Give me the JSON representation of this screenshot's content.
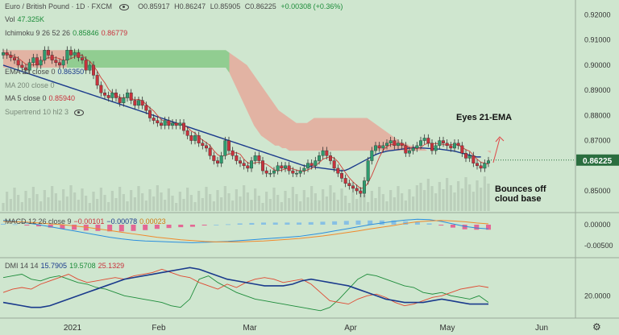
{
  "header": {
    "symbol_title": "Euro / British Pound · 1D · FXCM",
    "ohlc": {
      "o": "O0.85917",
      "h": "H0.86247",
      "l": "L0.85905",
      "c": "C0.86225",
      "chg": "+0.00308 (+0.36%)"
    },
    "vol_label": "Vol",
    "vol_value": "47.325K",
    "ichimoku_label": "Ichimoku 9 26 52 26",
    "ichimoku_v1": "0.85846",
    "ichimoku_v2": "0.86779",
    "ema_label": "EMA 21 close 0",
    "ema_value": "0.86350",
    "ma200_label": "MA 200 close 0",
    "ma5_label": "MA 5 close 0",
    "ma5_value": "0.85940",
    "supertrend_label": "Supertrend 10 hl2 3"
  },
  "colors": {
    "background": "#cfe6cf",
    "up": "#2e9c6e",
    "down": "#c8323c",
    "cloud_bear": "#e8a294",
    "cloud_bull": "#7cc47c",
    "ema": "#1a3a8c",
    "ma5": "#d0403a",
    "last_price_bg": "#2a6e3f",
    "macd": "#2b8fde",
    "signal": "#f08a2c",
    "hist_neg": "#e8508a",
    "hist_pos": "#7ab8e8",
    "dmi_plus": "#1d8c3a",
    "dmi_minus": "#e04830",
    "adx": "#1a3a8c"
  },
  "last_price": "0.86225",
  "macd_legend": {
    "label": "MACD 12 26 close 9",
    "v1": "−0.00101",
    "v2": "−0.00078",
    "v3": "0.00023"
  },
  "dmi_legend": {
    "label": "DMI 14 14",
    "v1": "15.7905",
    "v2": "19.5708",
    "v3": "25.1329"
  },
  "annotations": {
    "eyes": "Eyes 21-EMA",
    "bounce_line1": "Bounces off",
    "bounce_line2": "cloud base"
  },
  "chart_data": [
    {
      "type": "candlestick",
      "title": "Euro / British Pound · 1D · FXCM",
      "ylim": [
        0.842,
        0.924
      ],
      "y_ticks": [
        0.92,
        0.91,
        0.9,
        0.89,
        0.88,
        0.87,
        0.85
      ],
      "x_ticks": [
        "2021",
        "Feb",
        "Mar",
        "Apr",
        "May",
        "Jun"
      ],
      "series": [
        {
          "name": "price",
          "closes": [
            0.905,
            0.904,
            0.903,
            0.902,
            0.9,
            0.899,
            0.898,
            0.901,
            0.903,
            0.9,
            0.902,
            0.906,
            0.904,
            0.902,
            0.901,
            0.9,
            0.902,
            0.906,
            0.904,
            0.905,
            0.903,
            0.902,
            0.898,
            0.9,
            0.896,
            0.892,
            0.889,
            0.888,
            0.887,
            0.889,
            0.887,
            0.885,
            0.887,
            0.889,
            0.886,
            0.884,
            0.886,
            0.884,
            0.882,
            0.879,
            0.878,
            0.877,
            0.876,
            0.878,
            0.876,
            0.877,
            0.876,
            0.877,
            0.874,
            0.872,
            0.87,
            0.872,
            0.869,
            0.868,
            0.867,
            0.864,
            0.862,
            0.861,
            0.864,
            0.87,
            0.866,
            0.864,
            0.862,
            0.861,
            0.86,
            0.859,
            0.862,
            0.864,
            0.862,
            0.858,
            0.857,
            0.857,
            0.858,
            0.86,
            0.859,
            0.86,
            0.858,
            0.857,
            0.857,
            0.858,
            0.859,
            0.861,
            0.86,
            0.862,
            0.864,
            0.866,
            0.864,
            0.862,
            0.859,
            0.857,
            0.855,
            0.853,
            0.852,
            0.851,
            0.85,
            0.849,
            0.854,
            0.862,
            0.866,
            0.868,
            0.867,
            0.868,
            0.869,
            0.87,
            0.868,
            0.869,
            0.868,
            0.865,
            0.866,
            0.867,
            0.868,
            0.87,
            0.871,
            0.869,
            0.866,
            0.868,
            0.87,
            0.869,
            0.868,
            0.867,
            0.869,
            0.868,
            0.865,
            0.863,
            0.864,
            0.861,
            0.86,
            0.859,
            0.861,
            0.862
          ]
        },
        {
          "name": "EMA 21",
          "values": [
            0.9,
            0.8995,
            0.899,
            0.8985,
            0.898,
            0.8975,
            0.897,
            0.8965,
            0.896,
            0.8955,
            0.895,
            0.8945,
            0.894,
            0.8935,
            0.893,
            0.8925,
            0.892,
            0.8915,
            0.891,
            0.8905,
            0.89,
            0.8895,
            0.889,
            0.8885,
            0.888,
            0.8875,
            0.887,
            0.8865,
            0.886,
            0.8855,
            0.885,
            0.8845,
            0.884,
            0.8835,
            0.883,
            0.8825,
            0.882,
            0.8815,
            0.881,
            0.8805,
            0.88,
            0.8795,
            0.879,
            0.8785,
            0.878,
            0.8775,
            0.877,
            0.8765,
            0.876,
            0.8755,
            0.875,
            0.8745,
            0.874,
            0.8735,
            0.873,
            0.8725,
            0.872,
            0.8715,
            0.871,
            0.8705,
            0.87,
            0.8695,
            0.869,
            0.8685,
            0.868,
            0.8675,
            0.867,
            0.8665,
            0.866,
            0.8655,
            0.865,
            0.8645,
            0.864,
            0.8635,
            0.863,
            0.8625,
            0.862,
            0.8615,
            0.861,
            0.8605,
            0.86,
            0.8598,
            0.8596,
            0.8594,
            0.8592,
            0.859,
            0.8588,
            0.8586,
            0.8584,
            0.8582,
            0.858,
            0.8582,
            0.8588,
            0.8596,
            0.8604,
            0.8612,
            0.862,
            0.8628,
            0.8636,
            0.8644,
            0.865,
            0.8654,
            0.8658,
            0.866,
            0.8662,
            0.8664,
            0.8666,
            0.8668,
            0.867,
            0.8672,
            0.8672,
            0.8671,
            0.867,
            0.8669,
            0.8668,
            0.8667,
            0.8666,
            0.8664,
            0.8662,
            0.866,
            0.8658,
            0.8654,
            0.865,
            0.8646,
            0.8642,
            0.8638,
            0.8635,
            0.8635
          ]
        },
        {
          "name": "Ichimoku cloud top",
          "values": [
            0.906,
            0.906,
            0.906,
            0.906,
            0.906,
            0.906,
            0.906,
            0.906,
            0.906,
            0.906,
            0.906,
            0.906,
            0.906,
            0.906,
            0.906,
            0.906,
            0.906,
            0.906,
            0.906,
            0.906,
            0.906,
            0.906,
            0.906,
            0.906,
            0.906,
            0.906,
            0.906,
            0.906,
            0.906,
            0.906,
            0.906,
            0.906,
            0.906,
            0.906,
            0.906,
            0.906,
            0.906,
            0.906,
            0.906,
            0.906,
            0.906,
            0.906,
            0.906,
            0.906,
            0.906,
            0.906,
            0.906,
            0.906,
            0.906,
            0.906,
            0.906,
            0.906,
            0.906,
            0.906,
            0.906,
            0.906,
            0.906,
            0.906,
            0.906,
            0.906,
            0.906,
            0.906,
            0.906,
            0.906,
            0.905,
            0.904,
            0.903,
            0.902,
            0.901,
            0.9,
            0.898,
            0.896,
            0.894,
            0.892,
            0.89,
            0.888,
            0.886,
            0.884,
            0.882,
            0.881,
            0.88,
            0.879,
            0.878,
            0.877,
            0.877,
            0.877,
            0.877,
            0.878,
            0.879,
            0.879,
            0.879,
            0.879,
            0.879,
            0.879,
            0.879,
            0.879,
            0.879,
            0.879,
            0.879,
            0.879,
            0.879,
            0.879,
            0.879,
            0.879,
            0.878,
            0.877,
            0.876,
            0.875,
            0.874,
            0.873,
            0.872,
            0.871,
            0.87,
            0.869,
            0.869,
            0.868,
            0.868,
            0.867,
            0.867,
            0.867,
            0.866,
            0.866,
            0.866,
            0.866,
            0.866,
            0.866,
            0.866,
            0.866,
            0.866,
            0.866,
            0.866,
            0.866,
            0.866,
            0.866,
            0.866,
            0.866,
            0.866,
            0.866,
            0.865,
            0.865,
            0.865,
            0.865,
            0.865,
            0.865,
            0.865,
            0.865,
            0.865,
            0.865,
            0.865,
            0.865,
            0.865,
            0.865,
            0.865,
            0.865,
            0.865,
            0.865,
            0.865,
            0.865,
            0.865,
            0.865,
            0.865,
            0.865,
            0.865
          ]
        },
        {
          "name": "Ichimoku cloud bottom",
          "values": [
            0.899,
            0.899,
            0.899,
            0.899,
            0.899,
            0.899,
            0.899,
            0.899,
            0.899,
            0.899,
            0.899,
            0.899,
            0.899,
            0.899,
            0.899,
            0.899,
            0.899,
            0.899,
            0.899,
            0.899,
            0.899,
            0.899,
            0.899,
            0.899,
            0.899,
            0.899,
            0.899,
            0.899,
            0.899,
            0.899,
            0.899,
            0.899,
            0.899,
            0.899,
            0.899,
            0.899,
            0.899,
            0.899,
            0.899,
            0.899,
            0.899,
            0.899,
            0.899,
            0.899,
            0.899,
            0.899,
            0.899,
            0.899,
            0.899,
            0.899,
            0.899,
            0.899,
            0.899,
            0.899,
            0.899,
            0.899,
            0.899,
            0.899,
            0.899,
            0.899,
            0.899,
            0.899,
            0.899,
            0.899,
            0.897,
            0.894,
            0.891,
            0.888,
            0.885,
            0.882,
            0.879,
            0.876,
            0.874,
            0.872,
            0.871,
            0.87,
            0.869,
            0.868,
            0.868,
            0.867,
            0.867,
            0.866,
            0.866,
            0.866,
            0.866,
            0.866,
            0.866,
            0.866,
            0.866,
            0.866,
            0.866,
            0.866,
            0.866,
            0.866,
            0.866,
            0.866,
            0.866,
            0.866,
            0.866,
            0.866,
            0.866,
            0.866,
            0.866,
            0.866,
            0.866,
            0.866,
            0.866,
            0.866,
            0.866,
            0.866,
            0.866,
            0.866,
            0.866,
            0.866,
            0.866,
            0.866,
            0.866,
            0.866,
            0.866,
            0.866,
            0.866,
            0.866,
            0.866,
            0.866,
            0.866,
            0.866,
            0.866,
            0.866,
            0.866,
            0.866,
            0.866,
            0.866,
            0.866,
            0.866,
            0.866,
            0.866,
            0.866,
            0.866,
            0.866,
            0.866,
            0.866,
            0.866,
            0.866,
            0.866,
            0.866,
            0.866,
            0.866,
            0.866,
            0.866,
            0.866,
            0.866,
            0.866,
            0.866,
            0.866,
            0.866,
            0.866,
            0.866
          ]
        }
      ]
    },
    {
      "type": "bar",
      "title": "MACD 12 26 close 9",
      "ylim": [
        -0.0075,
        0.0025
      ],
      "y_ticks": [
        0.0,
        -0.005
      ],
      "series": [
        {
          "name": "MACD",
          "values": [
            0.001,
            0.0008,
            0.0004,
            0.0,
            -0.0005,
            -0.001,
            -0.0015,
            -0.002,
            -0.0025,
            -0.003,
            -0.0034,
            -0.0037,
            -0.0039,
            -0.004,
            -0.0041,
            -0.0042,
            -0.0043,
            -0.0042,
            -0.0041,
            -0.004,
            -0.0038,
            -0.0036,
            -0.0034,
            -0.0032,
            -0.003,
            -0.0028,
            -0.0024,
            -0.002,
            -0.0015,
            -0.001,
            -0.0005,
            0.0,
            0.0004,
            0.0008,
            0.0011,
            0.0013,
            0.0012,
            0.0008,
            0.0002,
            -0.0004,
            -0.0008,
            -0.001
          ]
        },
        {
          "name": "Signal",
          "values": [
            0.0008,
            0.0007,
            0.0006,
            0.0004,
            0.0002,
            0.0,
            -0.0003,
            -0.0006,
            -0.001,
            -0.0014,
            -0.0018,
            -0.0022,
            -0.0026,
            -0.003,
            -0.0033,
            -0.0036,
            -0.0038,
            -0.004,
            -0.0041,
            -0.0041,
            -0.0041,
            -0.004,
            -0.0039,
            -0.0037,
            -0.0035,
            -0.0033,
            -0.003,
            -0.0027,
            -0.0023,
            -0.0019,
            -0.0015,
            -0.001,
            -0.0006,
            -0.0002,
            0.0003,
            0.0007,
            0.0009,
            0.001,
            0.0009,
            0.0007,
            0.0004,
            0.0002
          ]
        }
      ]
    },
    {
      "type": "line",
      "title": "DMI 14 14",
      "ylim": [
        8,
        42
      ],
      "y_ticks": [
        20.0
      ],
      "series": [
        {
          "name": "+DI",
          "values": [
            31,
            32,
            33,
            30,
            29,
            31,
            32,
            30,
            28,
            27,
            25,
            24,
            22,
            20,
            19,
            18,
            17,
            16,
            14,
            13,
            18,
            30,
            32,
            28,
            25,
            22,
            20,
            18,
            17,
            16,
            15,
            14,
            13,
            12,
            11,
            13,
            18,
            24,
            30,
            33,
            32,
            30,
            28,
            26,
            25,
            22,
            21,
            22,
            20,
            19,
            18,
            20,
            16
          ]
        },
        {
          "name": "-DI",
          "values": [
            22,
            24,
            25,
            24,
            27,
            29,
            31,
            33,
            30,
            28,
            29,
            30,
            31,
            30,
            32,
            33,
            34,
            36,
            34,
            32,
            31,
            28,
            26,
            24,
            27,
            25,
            28,
            30,
            31,
            30,
            28,
            29,
            30,
            27,
            22,
            17,
            16,
            15,
            18,
            20,
            21,
            19,
            16,
            14,
            15,
            17,
            19,
            20,
            22,
            24,
            25,
            26,
            25
          ]
        },
        {
          "name": "ADX",
          "values": [
            16,
            15,
            14,
            13,
            13,
            14,
            16,
            18,
            20,
            22,
            24,
            26,
            28,
            30,
            31,
            32,
            33,
            34,
            35,
            36,
            37,
            36,
            34,
            32,
            30,
            29,
            28,
            27,
            26,
            26,
            26,
            27,
            29,
            30,
            29,
            28,
            27,
            26,
            24,
            22,
            20,
            18,
            17,
            16,
            16,
            16,
            17,
            18,
            17,
            16,
            15,
            15,
            15
          ]
        }
      ]
    }
  ]
}
